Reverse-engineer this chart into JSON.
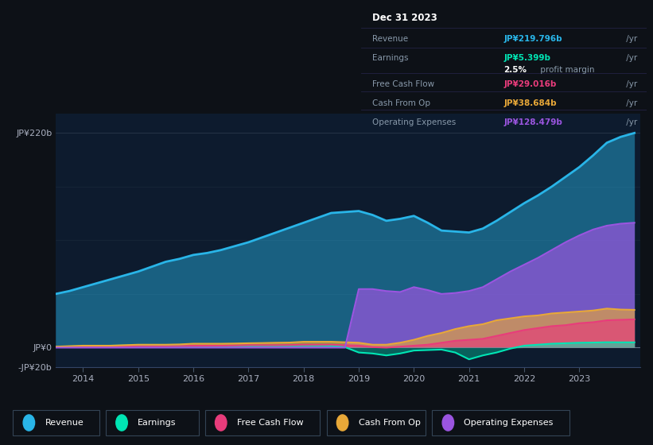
{
  "background_color": "#0d1117",
  "plot_bg_color": "#0d1b2e",
  "years": [
    2013.5,
    2013.75,
    2014,
    2014.25,
    2014.5,
    2014.75,
    2015,
    2015.25,
    2015.5,
    2015.75,
    2016,
    2016.25,
    2016.5,
    2016.75,
    2017,
    2017.25,
    2017.5,
    2017.75,
    2018,
    2018.25,
    2018.5,
    2018.75,
    2019,
    2019.25,
    2019.5,
    2019.75,
    2020,
    2020.25,
    2020.5,
    2020.75,
    2021,
    2021.25,
    2021.5,
    2021.75,
    2022,
    2022.25,
    2022.5,
    2022.75,
    2023,
    2023.25,
    2023.5,
    2023.75,
    2024
  ],
  "revenue": [
    55,
    58,
    62,
    66,
    70,
    74,
    78,
    83,
    88,
    91,
    95,
    97,
    100,
    104,
    108,
    113,
    118,
    123,
    128,
    133,
    138,
    139,
    140,
    136,
    130,
    132,
    135,
    128,
    120,
    119,
    118,
    122,
    130,
    139,
    148,
    156,
    165,
    175,
    185,
    197,
    210,
    216,
    220
  ],
  "earnings": [
    1.0,
    1.2,
    1.5,
    1.8,
    2.0,
    2.2,
    2.5,
    2.2,
    2.0,
    1.8,
    2.0,
    1.8,
    1.5,
    1.6,
    1.8,
    1.9,
    2.0,
    2.2,
    2.5,
    2.3,
    2.0,
    0.5,
    -5,
    -6,
    -8,
    -6,
    -3,
    -2.5,
    -2,
    -5,
    -12,
    -8,
    -5,
    -1,
    2,
    3,
    4,
    4.5,
    5,
    5.2,
    5.5,
    5.4,
    5.4
  ],
  "free_cash_flow": [
    0.5,
    0.7,
    1.0,
    1.0,
    1.0,
    1.2,
    1.5,
    1.5,
    1.5,
    1.7,
    2.0,
    2.0,
    2.0,
    2.2,
    2.5,
    2.5,
    2.5,
    2.7,
    3.0,
    3.0,
    3.0,
    2.5,
    2.0,
    0.5,
    0,
    1,
    2,
    3,
    5,
    7,
    8,
    9,
    12,
    15,
    18,
    20,
    22,
    23,
    25,
    26,
    28,
    28.5,
    29
  ],
  "cash_from_op": [
    1,
    1.5,
    2,
    2.0,
    2,
    2.5,
    3,
    3,
    3,
    3.3,
    4,
    4,
    4,
    4.2,
    4.5,
    4.7,
    5,
    5.2,
    6,
    6,
    6,
    5.5,
    5,
    3,
    3,
    5,
    8,
    12,
    15,
    19,
    22,
    24,
    28,
    30,
    32,
    33,
    35,
    36,
    37,
    38,
    40,
    39,
    38.7
  ],
  "operating_expenses": [
    0,
    0,
    0,
    0,
    0,
    0,
    0,
    0,
    0,
    0,
    0,
    0,
    0,
    0,
    0,
    0,
    0,
    0,
    0,
    0,
    0,
    0,
    60,
    60,
    58,
    57,
    62,
    59,
    55,
    56,
    58,
    62,
    70,
    78,
    85,
    92,
    100,
    108,
    115,
    121,
    125,
    127,
    128
  ],
  "revenue_color": "#29b5e8",
  "earnings_color": "#00e5b4",
  "free_cash_flow_color": "#e83c7b",
  "cash_from_op_color": "#e8a838",
  "operating_expenses_color": "#9b55e0",
  "ylim": [
    -20,
    240
  ],
  "xlim": [
    2013.5,
    2024.1
  ],
  "yticks": [
    -20,
    0,
    220
  ],
  "ytick_labels": [
    "-JP¥20b",
    "JP¥0",
    "JP¥220b"
  ],
  "xticks": [
    2014,
    2015,
    2016,
    2017,
    2018,
    2019,
    2020,
    2021,
    2022,
    2023
  ],
  "info_title": "Dec 31 2023",
  "info_revenue": "JP¥219.796b",
  "info_earnings": "JP¥5.399b",
  "info_profit_margin": "2.5%",
  "info_fcf": "JP¥29.016b",
  "info_cashop": "JP¥38.684b",
  "info_opex": "JP¥128.479b",
  "legend_items": [
    "Revenue",
    "Earnings",
    "Free Cash Flow",
    "Cash From Op",
    "Operating Expenses"
  ],
  "legend_colors": [
    "#29b5e8",
    "#00e5b4",
    "#e83c7b",
    "#e8a838",
    "#9b55e0"
  ]
}
